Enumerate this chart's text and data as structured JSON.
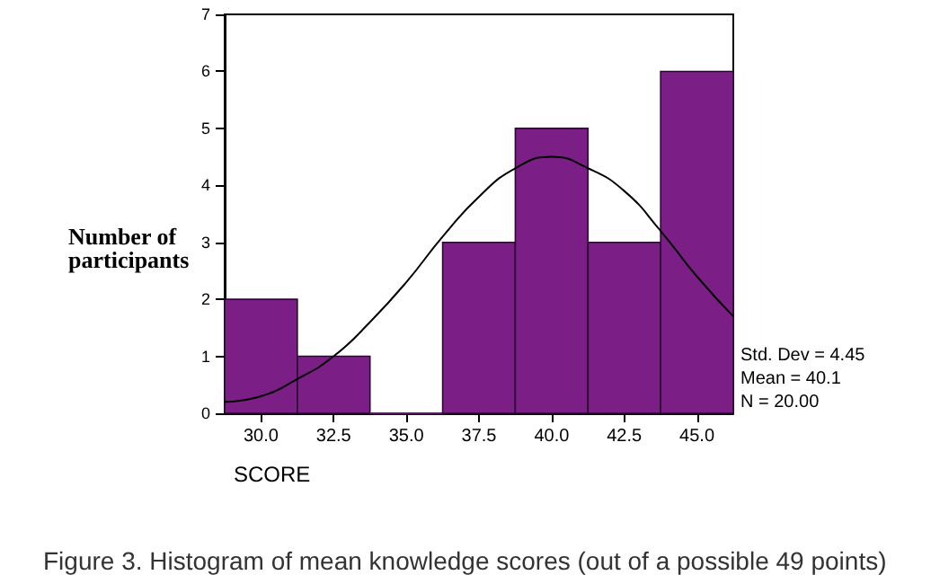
{
  "chart_data": {
    "type": "histogram",
    "title": "Figure 3. Histogram of mean knowledge scores (out of a possible 49 points)",
    "xlabel": "SCORE",
    "ylabel": "Number of participants",
    "bins": [
      28.75,
      31.25,
      33.75,
      36.25,
      38.75,
      41.25,
      43.75,
      46.25
    ],
    "series": [
      {
        "color": "#7b1f86",
        "values": [
          2,
          1,
          0,
          3,
          5,
          3,
          6
        ]
      },
      {
        "type": "line",
        "color": "#000000",
        "x": [
          28.75,
          30,
          31.25,
          32.5,
          33.75,
          35,
          36.25,
          37.5,
          38.75,
          40,
          41.25,
          42.5,
          43.75,
          45,
          46.25
        ],
        "values": [
          0.2,
          0.3,
          0.6,
          1.0,
          1.6,
          2.3,
          3.1,
          3.8,
          4.3,
          4.5,
          4.3,
          3.9,
          3.2,
          2.4,
          1.7
        ]
      }
    ],
    "xlim": [
      28.75,
      46.25
    ],
    "xticks": [
      {
        "value": 30,
        "label": "30.0"
      },
      {
        "value": 32.5,
        "label": "32.5"
      },
      {
        "value": 35,
        "label": "35.0"
      },
      {
        "value": 37.5,
        "label": "37.5"
      },
      {
        "value": 40,
        "label": "40.0"
      },
      {
        "value": 42.5,
        "label": "42.5"
      },
      {
        "value": 45,
        "label": "45.0"
      }
    ],
    "ylim": [
      0,
      7
    ],
    "yticks": [
      0,
      1,
      2,
      3,
      4,
      5,
      6,
      7
    ],
    "grid": false,
    "marker": "none",
    "annotations": [
      "Std. Dev = 4.45",
      "Mean = 40.1",
      "N = 20.00"
    ]
  }
}
